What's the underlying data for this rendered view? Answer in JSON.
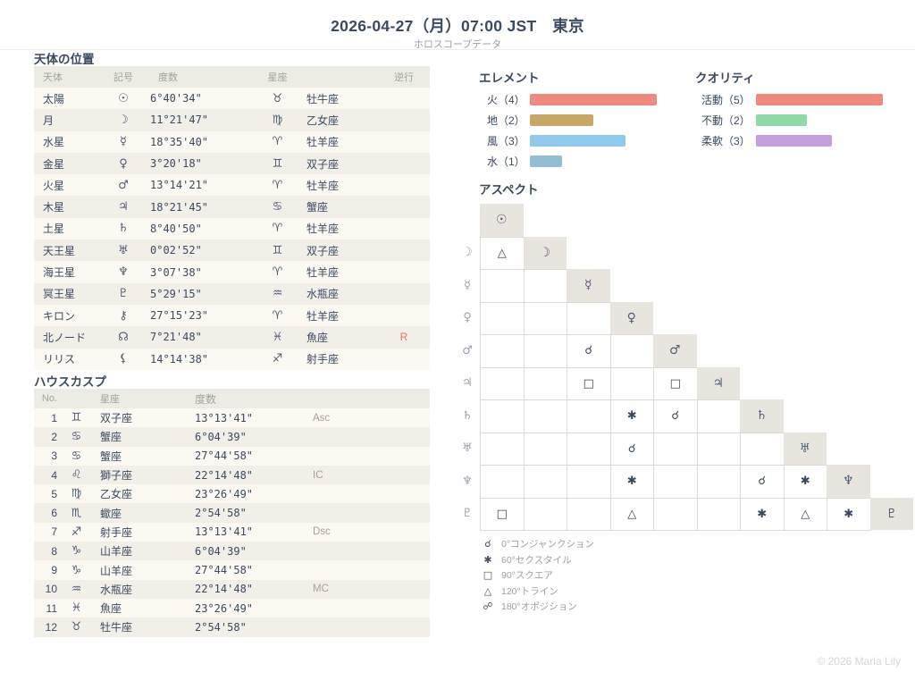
{
  "header": {
    "title": "2026-04-27（月）07:00 JST　東京",
    "subtitle": "ホロスコープデータ"
  },
  "planets": {
    "section_title": "天体の位置",
    "columns": [
      "天体",
      "記号",
      "度数",
      "星座",
      "逆行"
    ],
    "rows": [
      {
        "name": "太陽",
        "symbol": "☉",
        "degree": "6°40'34\"",
        "sign_symbol": "♉",
        "sign": "牡牛座",
        "retrograde": ""
      },
      {
        "name": "月",
        "symbol": "☽",
        "degree": "11°21'47\"",
        "sign_symbol": "♍",
        "sign": "乙女座",
        "retrograde": ""
      },
      {
        "name": "水星",
        "symbol": "☿",
        "degree": "18°35'40\"",
        "sign_symbol": "♈",
        "sign": "牡羊座",
        "retrograde": ""
      },
      {
        "name": "金星",
        "symbol": "♀",
        "degree": "3°20'18\"",
        "sign_symbol": "♊",
        "sign": "双子座",
        "retrograde": ""
      },
      {
        "name": "火星",
        "symbol": "♂",
        "degree": "13°14'21\"",
        "sign_symbol": "♈",
        "sign": "牡羊座",
        "retrograde": ""
      },
      {
        "name": "木星",
        "symbol": "♃",
        "degree": "18°21'45\"",
        "sign_symbol": "♋",
        "sign": "蟹座",
        "retrograde": ""
      },
      {
        "name": "土星",
        "symbol": "♄",
        "degree": "8°40'50\"",
        "sign_symbol": "♈",
        "sign": "牡羊座",
        "retrograde": ""
      },
      {
        "name": "天王星",
        "symbol": "♅",
        "degree": "0°02'52\"",
        "sign_symbol": "♊",
        "sign": "双子座",
        "retrograde": ""
      },
      {
        "name": "海王星",
        "symbol": "♆",
        "degree": "3°07'38\"",
        "sign_symbol": "♈",
        "sign": "牡羊座",
        "retrograde": ""
      },
      {
        "name": "冥王星",
        "symbol": "♇",
        "degree": "5°29'15\"",
        "sign_symbol": "♒",
        "sign": "水瓶座",
        "retrograde": ""
      },
      {
        "name": "キロン",
        "symbol": "⚷",
        "degree": "27°15'23\"",
        "sign_symbol": "♈",
        "sign": "牡羊座",
        "retrograde": ""
      },
      {
        "name": "北ノード",
        "symbol": "☊",
        "degree": "7°21'48\"",
        "sign_symbol": "♓",
        "sign": "魚座",
        "retrograde": "R"
      },
      {
        "name": "リリス",
        "symbol": "⚸",
        "degree": "14°14'38\"",
        "sign_symbol": "♐",
        "sign": "射手座",
        "retrograde": ""
      }
    ]
  },
  "houses": {
    "section_title": "ハウスカスプ",
    "columns": [
      "No.",
      "星座",
      "度数"
    ],
    "rows": [
      {
        "no": "1",
        "sign_symbol": "♊",
        "sign": "双子座",
        "degree": "13°13'41\"",
        "angle": "Asc"
      },
      {
        "no": "2",
        "sign_symbol": "♋",
        "sign": "蟹座",
        "degree": "6°04'39\"",
        "angle": ""
      },
      {
        "no": "3",
        "sign_symbol": "♋",
        "sign": "蟹座",
        "degree": "27°44'58\"",
        "angle": ""
      },
      {
        "no": "4",
        "sign_symbol": "♌",
        "sign": "獅子座",
        "degree": "22°14'48\"",
        "angle": "IC"
      },
      {
        "no": "5",
        "sign_symbol": "♍",
        "sign": "乙女座",
        "degree": "23°26'49\"",
        "angle": ""
      },
      {
        "no": "6",
        "sign_symbol": "♏",
        "sign": "蠍座",
        "degree": "2°54'58\"",
        "angle": ""
      },
      {
        "no": "7",
        "sign_symbol": "♐",
        "sign": "射手座",
        "degree": "13°13'41\"",
        "angle": "Dsc"
      },
      {
        "no": "8",
        "sign_symbol": "♑",
        "sign": "山羊座",
        "degree": "6°04'39\"",
        "angle": ""
      },
      {
        "no": "9",
        "sign_symbol": "♑",
        "sign": "山羊座",
        "degree": "27°44'58\"",
        "angle": ""
      },
      {
        "no": "10",
        "sign_symbol": "♒",
        "sign": "水瓶座",
        "degree": "22°14'48\"",
        "angle": "MC"
      },
      {
        "no": "11",
        "sign_symbol": "♓",
        "sign": "魚座",
        "degree": "23°26'49\"",
        "angle": ""
      },
      {
        "no": "12",
        "sign_symbol": "♉",
        "sign": "牡牛座",
        "degree": "2°54'58\"",
        "angle": ""
      }
    ]
  },
  "chart_data": [
    {
      "type": "bar",
      "title": "エレメント",
      "orientation": "horizontal",
      "categories": [
        "火",
        "地",
        "風",
        "水"
      ],
      "values": [
        4,
        2,
        3,
        1
      ],
      "labels": [
        "火（4）",
        "地（2）",
        "風（3）",
        "水（1）"
      ],
      "colors": [
        "#ee8a7e",
        "#c6a766",
        "#90c9ec",
        "#92bdd3"
      ],
      "max_value": 4
    },
    {
      "type": "bar",
      "title": "クオリティ",
      "orientation": "horizontal",
      "categories": [
        "活動",
        "不動",
        "柔軟"
      ],
      "values": [
        5,
        2,
        3
      ],
      "labels": [
        "活動（5）",
        "不動（2）",
        "柔軟（3）"
      ],
      "colors": [
        "#ee8a7e",
        "#8fd9a8",
        "#c49fdb"
      ],
      "max_value": 5
    }
  ],
  "aspects": {
    "section_title": "アスペクト",
    "planets": [
      "☉",
      "☽",
      "☿",
      "♀",
      "♂",
      "♃",
      "♄",
      "♅",
      "♆",
      "♇"
    ],
    "cells": [
      {
        "row": 1,
        "col": 0,
        "symbol": "△",
        "aspect": "trine"
      },
      {
        "row": 4,
        "col": 2,
        "symbol": "☌",
        "aspect": "conjunction"
      },
      {
        "row": 5,
        "col": 2,
        "symbol": "□",
        "aspect": "square"
      },
      {
        "row": 5,
        "col": 4,
        "symbol": "□",
        "aspect": "square"
      },
      {
        "row": 6,
        "col": 3,
        "symbol": "✱",
        "aspect": "sextile"
      },
      {
        "row": 6,
        "col": 4,
        "symbol": "☌",
        "aspect": "conjunction"
      },
      {
        "row": 7,
        "col": 3,
        "symbol": "☌",
        "aspect": "conjunction"
      },
      {
        "row": 8,
        "col": 3,
        "symbol": "✱",
        "aspect": "sextile"
      },
      {
        "row": 8,
        "col": 6,
        "symbol": "☌",
        "aspect": "conjunction"
      },
      {
        "row": 8,
        "col": 7,
        "symbol": "✱",
        "aspect": "sextile"
      },
      {
        "row": 9,
        "col": 0,
        "symbol": "□",
        "aspect": "square"
      },
      {
        "row": 9,
        "col": 3,
        "symbol": "△",
        "aspect": "trine"
      },
      {
        "row": 9,
        "col": 6,
        "symbol": "✱",
        "aspect": "sextile"
      },
      {
        "row": 9,
        "col": 7,
        "symbol": "△",
        "aspect": "trine"
      },
      {
        "row": 9,
        "col": 8,
        "symbol": "✱",
        "aspect": "sextile"
      }
    ],
    "legend": [
      {
        "symbol": "☌",
        "label": "0°コンジャンクション"
      },
      {
        "symbol": "✱",
        "label": "60°セクスタイル"
      },
      {
        "symbol": "□",
        "label": "90°スクエア"
      },
      {
        "symbol": "△",
        "label": "120°トライン"
      },
      {
        "symbol": "☍",
        "label": "180°オポジション"
      }
    ]
  },
  "footer": {
    "copyright": "© 2026 Maria Lily"
  },
  "colors": {
    "text_navy": "#3b4961",
    "table_header_bg": "#edece4",
    "row_odd_bg": "#fbf9f2",
    "row_even_bg": "#f1efe7",
    "retrograde_red": "#e8736b",
    "angle_label": "#ab9f92",
    "matrix_diag_bg": "#e8e5de",
    "matrix_border": "#dcdad2"
  }
}
